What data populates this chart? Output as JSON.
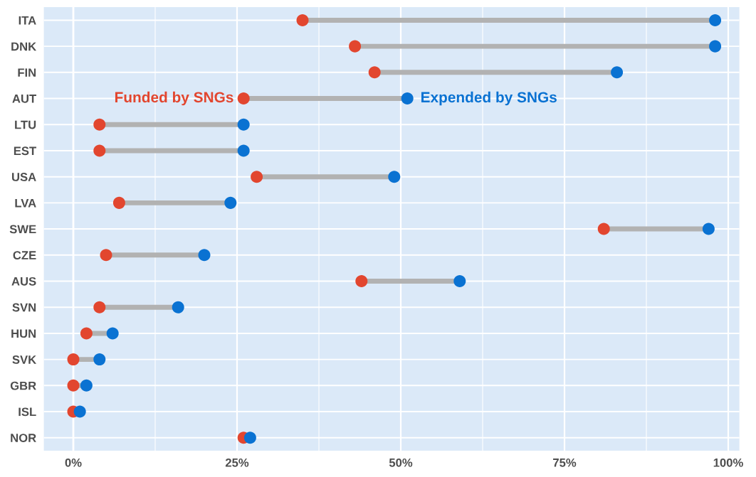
{
  "chart_data": {
    "type": "scatter",
    "orientation": "horizontal",
    "categories": [
      "ITA",
      "DNK",
      "FIN",
      "AUT",
      "LTU",
      "EST",
      "USA",
      "LVA",
      "SWE",
      "CZE",
      "AUS",
      "SVN",
      "HUN",
      "SVK",
      "GBR",
      "ISL",
      "NOR"
    ],
    "series": [
      {
        "name": "Funded by SNGs",
        "color": "#e2462f",
        "values": [
          35,
          43,
          46,
          26,
          4,
          4,
          28,
          7,
          81,
          5,
          44,
          4,
          2,
          0,
          0,
          0,
          26
        ]
      },
      {
        "name": "Expended by SNGs",
        "color": "#0a72d2",
        "values": [
          98,
          98,
          83,
          51,
          26,
          26,
          49,
          24,
          97,
          20,
          59,
          16,
          6,
          4,
          2,
          1,
          27
        ]
      }
    ],
    "xlim": [
      -4.5,
      101.7
    ],
    "xticks": [
      {
        "value": 0,
        "label": "0%"
      },
      {
        "value": 25,
        "label": "25%"
      },
      {
        "value": 50,
        "label": "50%"
      },
      {
        "value": 75,
        "label": "75%"
      },
      {
        "value": 100,
        "label": "100%"
      }
    ],
    "grid": true,
    "marker": "circle",
    "legend": false
  }
}
